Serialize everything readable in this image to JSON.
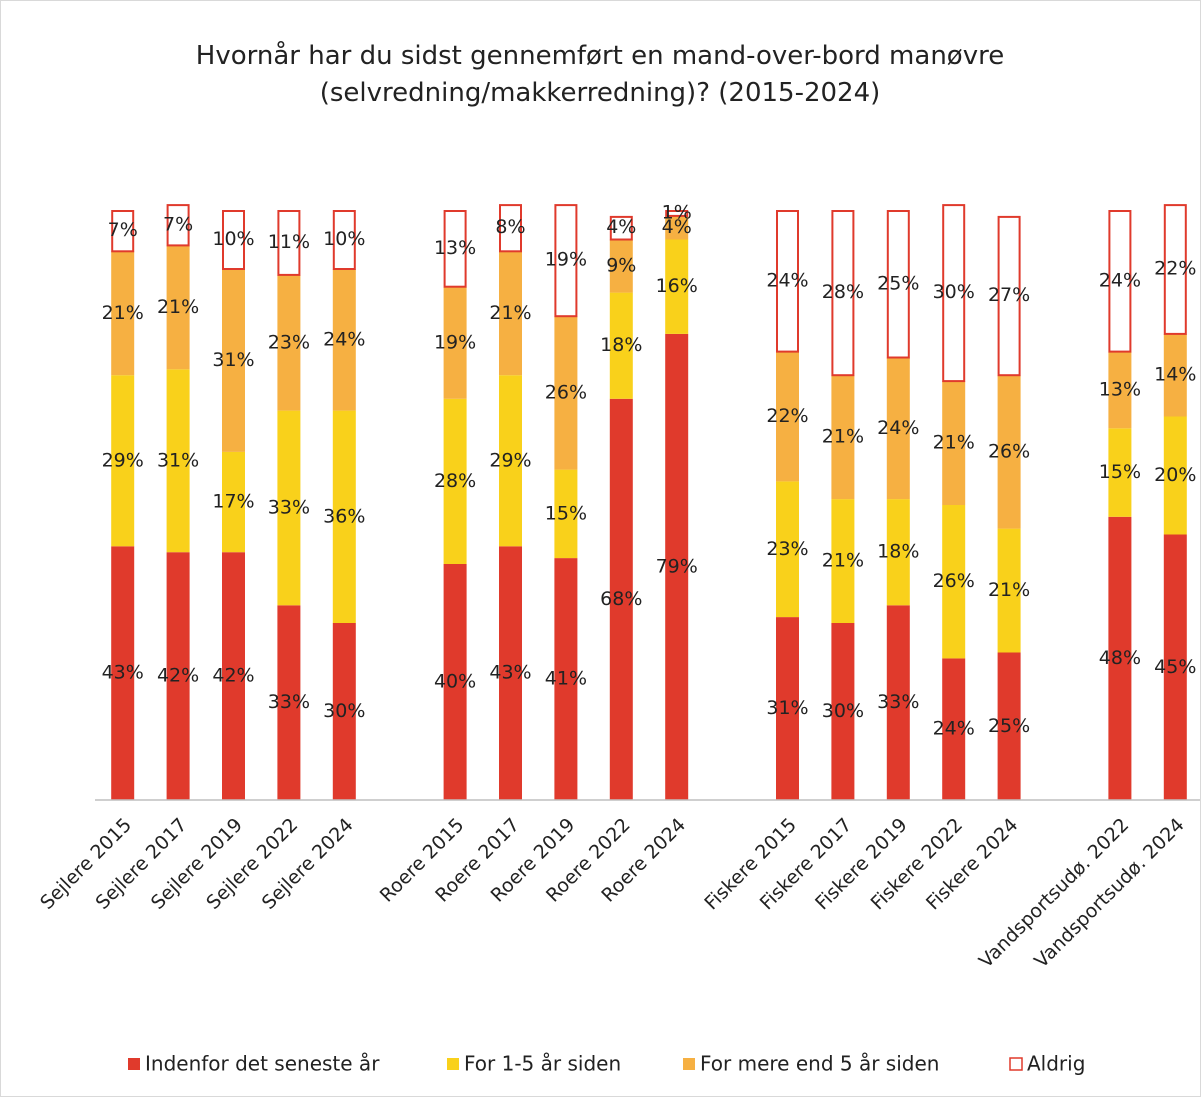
{
  "chart_data": {
    "type": "stacked_bar",
    "title": "Hvornår har du sidst gennemført en mand-over-bord manøvre (selvredning/makkerredning)? (2015-2024)",
    "categories": [
      "Sejlere 2015",
      "Sejlere 2017",
      "Sejlere 2019",
      "Sejlere 2022",
      "Sejlere 2024",
      null,
      "Roere 2015",
      "Roere 2017",
      "Roere 2019",
      "Roere 2022",
      "Roere 2024",
      null,
      "Fiskere 2015",
      "Fiskere 2017",
      "Fiskere 2019",
      "Fiskere 2022",
      "Fiskere 2024",
      null,
      "Vandsportsudø. 2022",
      "Vandsportsudø. 2024"
    ],
    "ylim": [
      0,
      100
    ],
    "legend": "bottom",
    "series": [
      {
        "name": "Indenfor det seneste år",
        "color": "#e03a2c",
        "style": "filled",
        "values": [
          43,
          42,
          42,
          33,
          30,
          null,
          40,
          43,
          41,
          68,
          79,
          null,
          31,
          30,
          33,
          24,
          25,
          null,
          48,
          45
        ],
        "value_labels": [
          "43%",
          "42%",
          "42%",
          "33%",
          "30%",
          null,
          "40%",
          "43%",
          "41%",
          "68%",
          "79%",
          null,
          "31%",
          "30%",
          "33%",
          "24%",
          "25%",
          null,
          "48%",
          "45%"
        ]
      },
      {
        "name": "For 1-5 år siden",
        "color": "#f9d11b",
        "style": "filled",
        "values": [
          29,
          31,
          17,
          33,
          36,
          null,
          28,
          29,
          15,
          18,
          16,
          null,
          23,
          21,
          18,
          26,
          21,
          null,
          15,
          20
        ],
        "value_labels": [
          "29%",
          "31%",
          "17%",
          "33%",
          "36%",
          null,
          "28%",
          "29%",
          "15%",
          "18%",
          "16%",
          null,
          "23%",
          "21%",
          "18%",
          "26%",
          "21%",
          null,
          "15%",
          "20%"
        ]
      },
      {
        "name": "For mere end 5 år siden",
        "color": "#f6b042",
        "style": "filled",
        "values": [
          21,
          21,
          31,
          23,
          24,
          null,
          19,
          21,
          26,
          9,
          4,
          null,
          22,
          21,
          24,
          21,
          26,
          null,
          13,
          14
        ],
        "value_labels": [
          "21%",
          "21%",
          "31%",
          "23%",
          "24%",
          null,
          "19%",
          "21%",
          "26%",
          "9%",
          "4%",
          null,
          "22%",
          "21%",
          "24%",
          "21%",
          "26%",
          null,
          "13%",
          "14%"
        ]
      },
      {
        "name": "Aldrig",
        "color": "#e03a2c",
        "style": "outline",
        "values": [
          7,
          7,
          10,
          11,
          10,
          null,
          13,
          8,
          19,
          4,
          1,
          null,
          24,
          28,
          25,
          30,
          27,
          null,
          24,
          22
        ],
        "value_labels": [
          "7%",
          "7%",
          "10%",
          "11%",
          "10%",
          null,
          "13%",
          "8%",
          "19%",
          "4%",
          "1%",
          null,
          "24%",
          "28%",
          "25%",
          "30%",
          "27%",
          null,
          "24%",
          "22%"
        ]
      }
    ]
  }
}
